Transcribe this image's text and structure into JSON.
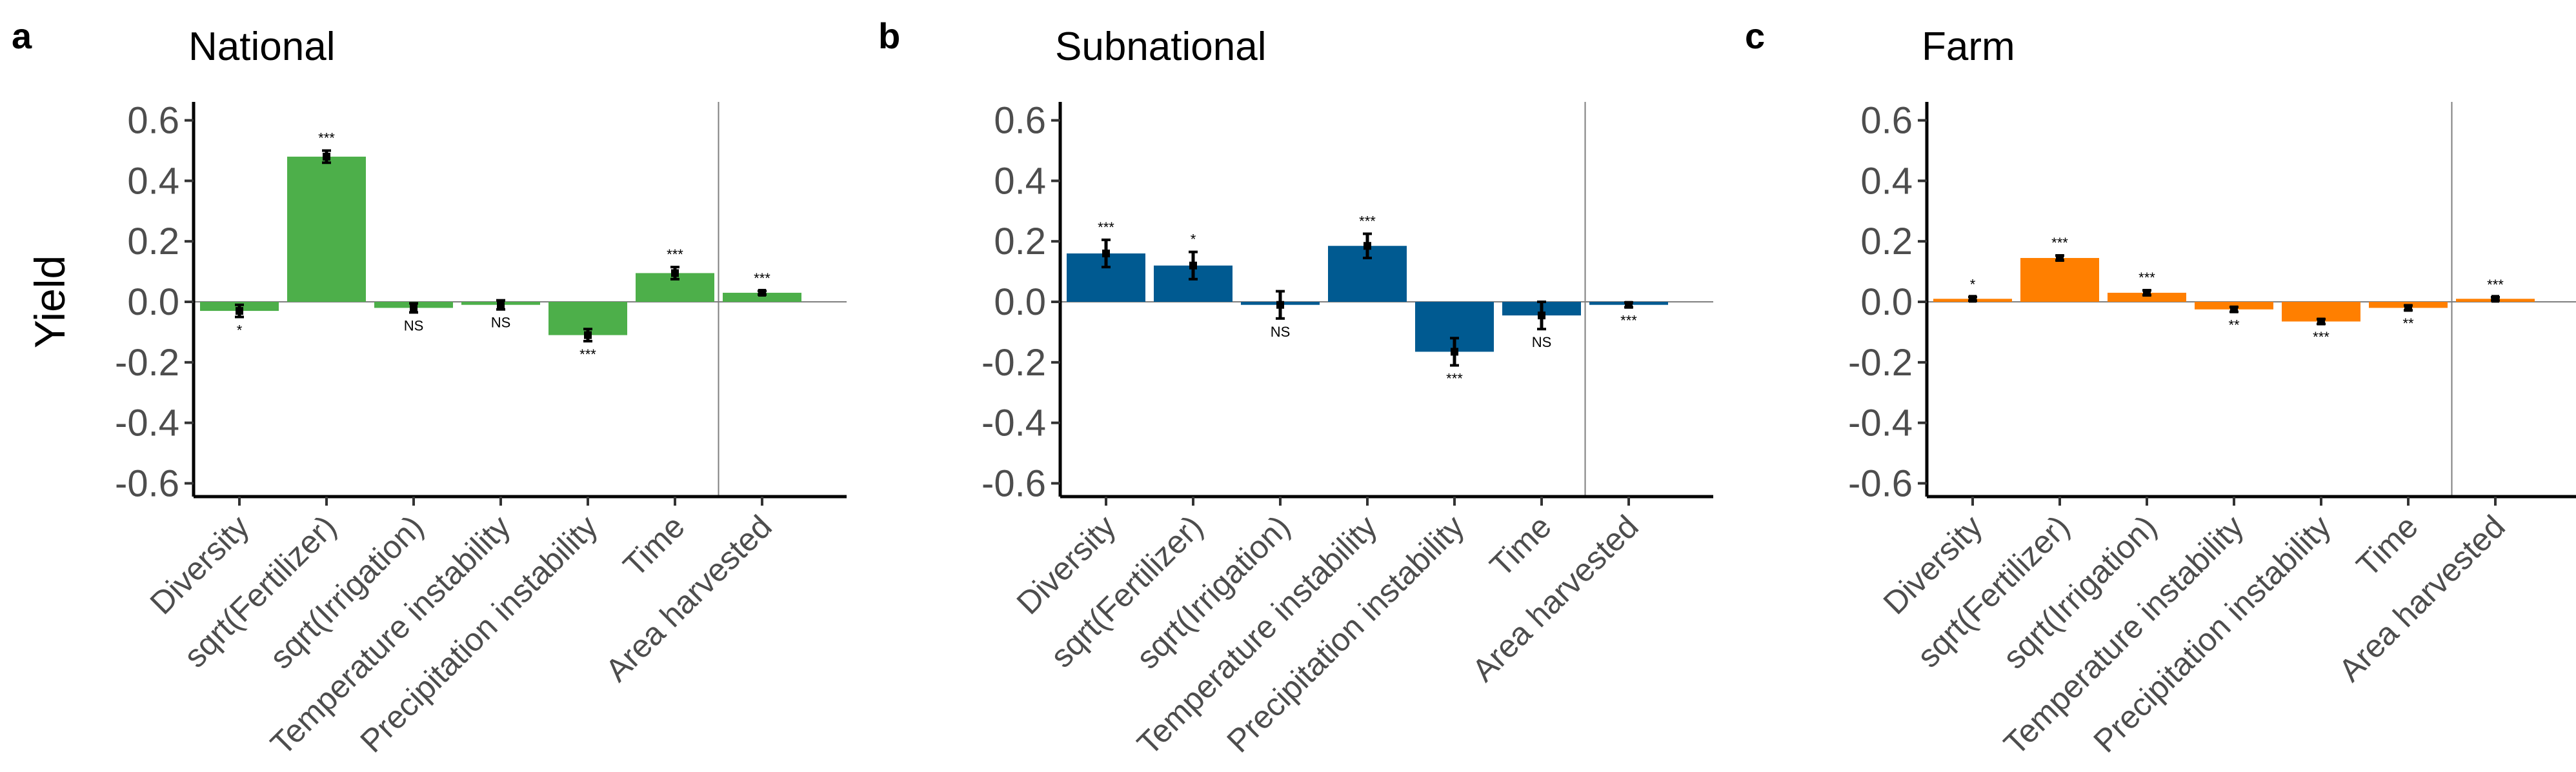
{
  "chart_data": [
    {
      "type": "bar",
      "panel_letter": "a",
      "title": "National",
      "ylabel": "Yield",
      "color": "#4DAF4A",
      "ylim": [
        -0.66,
        0.66
      ],
      "yticks": [
        0.6,
        0.4,
        0.2,
        0.0,
        -0.2,
        -0.4,
        -0.6
      ],
      "ytick_labels": [
        "0.6",
        "0.4",
        "0.2",
        "0.0",
        "-0.2",
        "-0.4",
        "-0.6"
      ],
      "categories": [
        "Diversity",
        "sqrt(Fertilizer)",
        "sqrt(Irrigation)",
        "Temperature instability",
        "Precipitation instability",
        "Time",
        "Area harvested"
      ],
      "values": [
        -0.03,
        0.48,
        -0.02,
        -0.01,
        -0.11,
        0.095,
        0.03
      ],
      "errors": [
        0.02,
        0.02,
        0.015,
        0.015,
        0.02,
        0.02,
        0.006
      ],
      "significance": [
        "*",
        "***",
        "NS",
        "NS",
        "***",
        "***",
        "***"
      ],
      "separator_after_index": 5,
      "grid": false
    },
    {
      "type": "bar",
      "panel_letter": "b",
      "title": "Subnational",
      "ylabel": "",
      "color": "#005A91",
      "ylim": [
        -0.66,
        0.66
      ],
      "yticks": [
        0.6,
        0.4,
        0.2,
        0.0,
        -0.2,
        -0.4,
        -0.6
      ],
      "ytick_labels": [
        "0.6",
        "0.4",
        "0.2",
        "0.0",
        "-0.2",
        "-0.4",
        "-0.6"
      ],
      "categories": [
        "Diversity",
        "sqrt(Fertilizer)",
        "sqrt(Irrigation)",
        "Temperature instability",
        "Precipitation instability",
        "Time",
        "Area harvested"
      ],
      "values": [
        0.16,
        0.12,
        -0.01,
        0.185,
        -0.165,
        -0.045,
        -0.01
      ],
      "errors": [
        0.045,
        0.045,
        0.045,
        0.04,
        0.045,
        0.045,
        0.008
      ],
      "significance": [
        "***",
        "*",
        "NS",
        "***",
        "***",
        "NS",
        "***"
      ],
      "separator_after_index": 5,
      "grid": false
    },
    {
      "type": "bar",
      "panel_letter": "c",
      "title": "Farm",
      "ylabel": "",
      "color": "#FF7F00",
      "ylim": [
        -0.66,
        0.66
      ],
      "yticks": [
        0.6,
        0.4,
        0.2,
        0.0,
        -0.2,
        -0.4,
        -0.6
      ],
      "ytick_labels": [
        "0.6",
        "0.4",
        "0.2",
        "0.0",
        "-0.2",
        "-0.4",
        "-0.6"
      ],
      "categories": [
        "Diversity",
        "sqrt(Fertilizer)",
        "sqrt(Irrigation)",
        "Temperature instability",
        "Precipitation instability",
        "Time",
        "Area harvested"
      ],
      "values": [
        0.01,
        0.145,
        0.03,
        -0.025,
        -0.065,
        -0.02,
        0.01
      ],
      "errors": [
        0.006,
        0.008,
        0.008,
        0.008,
        0.008,
        0.008,
        0.005
      ],
      "significance": [
        "*",
        "***",
        "***",
        "**",
        "***",
        "**",
        "***"
      ],
      "separator_after_index": 5,
      "grid": false
    }
  ]
}
